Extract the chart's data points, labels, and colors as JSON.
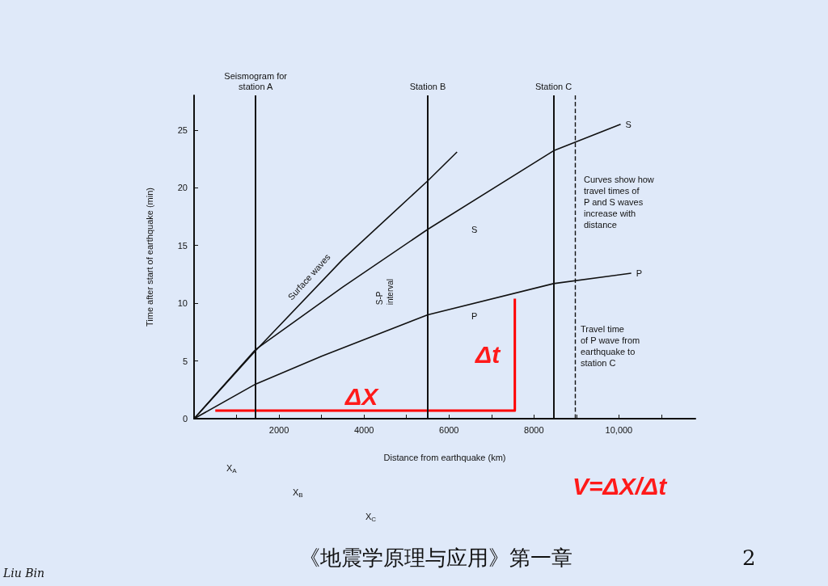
{
  "chart_data": {
    "type": "line",
    "xlabel": "Distance from earthquake (km)",
    "ylabel": "Time after start of earthquake (min)",
    "xlim": [
      0,
      11800
    ],
    "ylim": [
      0,
      28
    ],
    "xticks": [
      {
        "value": 0,
        "label": null
      },
      {
        "value": 1000,
        "label": null
      },
      2000,
      {
        "value": 3000,
        "label": null
      },
      4000,
      {
        "value": 5000,
        "label": null
      },
      6000,
      {
        "value": 7000,
        "label": null
      },
      8000,
      {
        "value": 9000,
        "label": null
      },
      {
        "value": 10000,
        "label": "10,000"
      },
      {
        "value": 11000,
        "label": null
      }
    ],
    "yticks": [
      0,
      5,
      10,
      15,
      20,
      25
    ],
    "grid": false,
    "series": [
      {
        "name": "Surface waves",
        "color": "#111111",
        "x": [
          0,
          1450,
          3500,
          5500,
          6190
        ],
        "values": [
          0,
          5.9,
          13.8,
          20.6,
          23.1
        ]
      },
      {
        "name": "S",
        "color": "#111111",
        "x": [
          0,
          1450,
          3500,
          5500,
          8460,
          10040
        ],
        "values": [
          0,
          6.0,
          11.4,
          16.4,
          23.2,
          25.5
        ]
      },
      {
        "name": "P",
        "color": "#111111",
        "x": [
          0,
          1450,
          3000,
          5500,
          8460,
          10290
        ],
        "values": [
          0,
          3.0,
          5.4,
          9.0,
          11.7,
          12.6
        ]
      },
      {
        "color": "#ff0000",
        "x": [
          500,
          7550,
          7550
        ],
        "values": [
          0.7,
          0.7,
          10.4
        ]
      }
    ],
    "ref_lines": [
      {
        "axis": "x",
        "value": 1450,
        "label": "Seismogram for\nstation A",
        "color": "#111111"
      },
      {
        "axis": "x",
        "value": 5500,
        "label": "Station B",
        "color": "#111111"
      },
      {
        "axis": "x",
        "value": 8460,
        "label": "Station C",
        "color": "#111111"
      },
      {
        "axis": "x",
        "value": 8970,
        "label": null,
        "color": "#111111",
        "line_style": "dashed"
      }
    ],
    "annotations": [
      "Curves show how\ntravel times of\nP and S waves\nincrease with\ndistance",
      "Travel time\nof P wave from\nearthquake to\nstation C",
      "S-P\ninterval",
      "S",
      "P",
      "ΔX",
      "Δt",
      "V=ΔX/Δt",
      "X$_{A}$",
      "X$_{B}$",
      "X$_{C}$",
      "《地震学原理与应用》第一章",
      "2",
      "Liu Bin"
    ]
  }
}
